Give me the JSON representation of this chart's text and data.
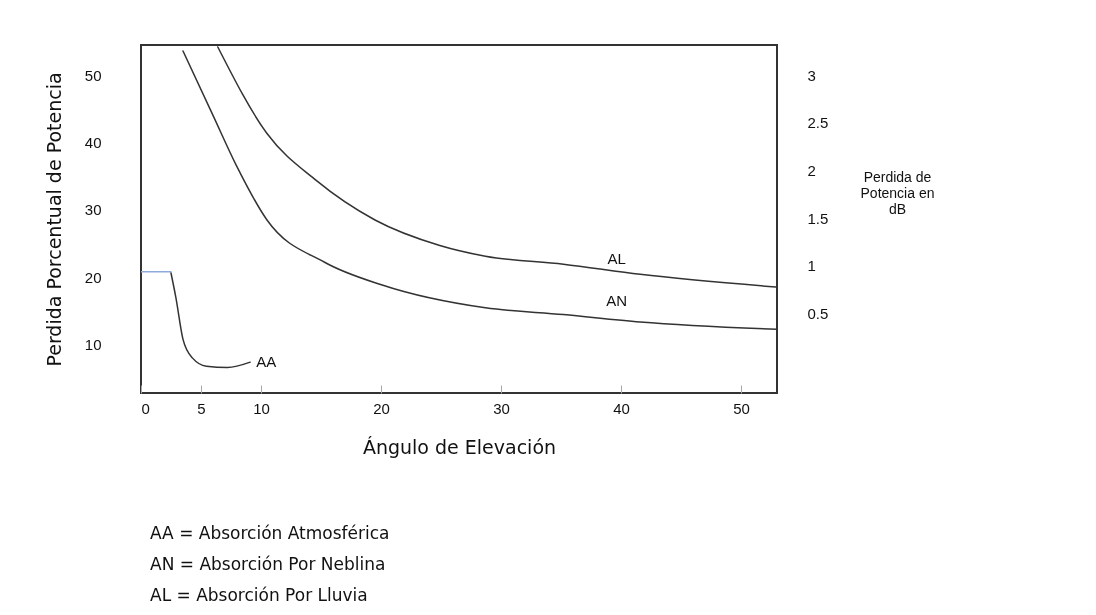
{
  "chart_data": {
    "type": "line",
    "xlabel": "Ángulo de Elevación",
    "ylabel": "Perdida Porcentual de Potencia",
    "y2label": "Perdida de Potencia en dB",
    "xlim": [
      0,
      53
    ],
    "xticks": [
      0,
      5,
      10,
      20,
      30,
      40,
      50
    ],
    "ylim": [
      2.7,
      54.6
    ],
    "yticks": [
      10,
      20,
      30,
      40,
      50
    ],
    "y2lim": [
      -0.34,
      3.32
    ],
    "y2ticks": [
      0.5,
      1,
      1.5,
      2,
      2.5,
      3
    ],
    "grid": false,
    "marker": "none",
    "line_style": "solid",
    "series": [
      {
        "color": "#8eaadb",
        "x": [
          0,
          2.5
        ],
        "values": [
          20.8,
          20.8
        ]
      },
      {
        "name": "AA",
        "color": "#333333",
        "x": [
          2.5,
          2.9,
          3.5,
          4.3,
          5.45,
          7.2,
          9.1
        ],
        "values": [
          20.6,
          17.0,
          10.7,
          7.9,
          6.7,
          6.5,
          7.3
        ]
      },
      {
        "name": "AN",
        "color": "#333333",
        "x": [
          3.5,
          6.0,
          7.9,
          10.5,
          15.3,
          20.1,
          28.7,
          35.2,
          41.6,
          53
        ],
        "values": [
          53.7,
          44.1,
          36.8,
          28.5,
          22.2,
          18.8,
          15.4,
          14.4,
          13.3,
          12.2
        ]
      },
      {
        "name": "AL",
        "color": "#333333",
        "x": [
          6.4,
          10.5,
          14.6,
          19.5,
          24.9,
          28.7,
          35.2,
          41.6,
          52.9
        ],
        "values": [
          54.3,
          41.4,
          34.4,
          28.5,
          24.7,
          23.1,
          21.9,
          20.4,
          18.5
        ]
      }
    ],
    "annotations": [
      "AA = Absorción Atmosférica",
      "AN = Absorción Por Neblina",
      "AL = Absorción Por Lluvia"
    ]
  }
}
